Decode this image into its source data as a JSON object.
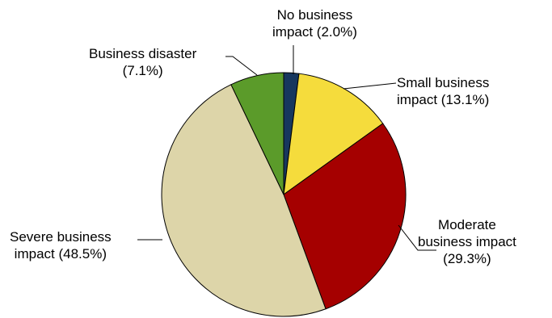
{
  "chart_data": {
    "type": "pie",
    "title": "",
    "slices": [
      {
        "name": "No business impact",
        "value": 2.0,
        "label_lines": [
          "No business",
          "impact (2.0%)"
        ],
        "color": "#17375e"
      },
      {
        "name": "Small business impact",
        "value": 13.1,
        "label_lines": [
          "Small business",
          "impact (13.1%)"
        ],
        "color": "#f5dc3c"
      },
      {
        "name": "Moderate business impact",
        "value": 29.3,
        "label_lines": [
          "Moderate",
          "business impact",
          "(29.3%)"
        ],
        "color": "#a50000"
      },
      {
        "name": "Severe business impact",
        "value": 48.5,
        "label_lines": [
          "Severe business",
          "impact (48.5%)"
        ],
        "color": "#ddd5a9"
      },
      {
        "name": "Business disaster",
        "value": 7.1,
        "label_lines": [
          "Business disaster",
          "(7.1%)"
        ],
        "color": "#5b9b2a"
      }
    ],
    "start_angle": "12 o'clock",
    "direction": "clockwise",
    "legend": "none",
    "labels": "outside with leader lines"
  }
}
